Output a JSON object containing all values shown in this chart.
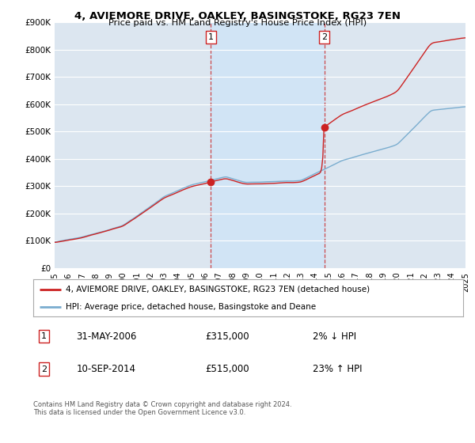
{
  "title": "4, AVIEMORE DRIVE, OAKLEY, BASINGSTOKE, RG23 7EN",
  "subtitle": "Price paid vs. HM Land Registry's House Price Index (HPI)",
  "ylim": [
    0,
    900000
  ],
  "yticks": [
    0,
    100000,
    200000,
    300000,
    400000,
    500000,
    600000,
    700000,
    800000,
    900000
  ],
  "ytick_labels": [
    "£0",
    "£100K",
    "£200K",
    "£300K",
    "£400K",
    "£500K",
    "£600K",
    "£700K",
    "£800K",
    "£900K"
  ],
  "hpi_color": "#7aadcf",
  "price_color": "#cc2222",
  "shade_color": "#d0e4f7",
  "sale1_year": 2006.41,
  "sale1_price": 315000,
  "sale2_year": 2014.69,
  "sale2_price": 515000,
  "legend_line1": "4, AVIEMORE DRIVE, OAKLEY, BASINGSTOKE, RG23 7EN (detached house)",
  "legend_line2": "HPI: Average price, detached house, Basingstoke and Deane",
  "ann1_date": "31-MAY-2006",
  "ann1_price": "£315,000",
  "ann1_hpi": "2% ↓ HPI",
  "ann2_date": "10-SEP-2014",
  "ann2_price": "£515,000",
  "ann2_hpi": "23% ↑ HPI",
  "footer": "Contains HM Land Registry data © Crown copyright and database right 2024.\nThis data is licensed under the Open Government Licence v3.0.",
  "bg_color": "#ffffff",
  "plot_bg_color": "#dce6f0",
  "grid_color": "#ffffff",
  "xstart": 1995,
  "xend": 2025
}
